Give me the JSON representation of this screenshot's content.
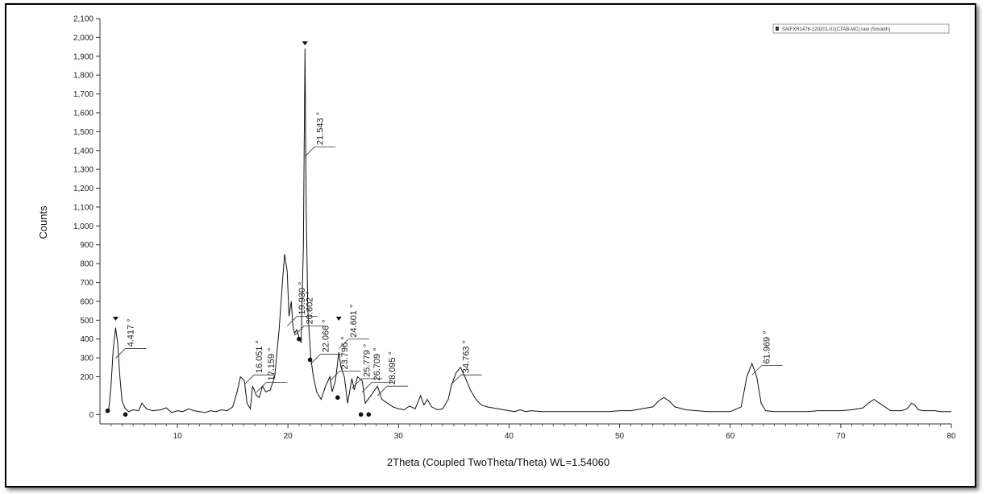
{
  "chart_data": {
    "type": "line",
    "xlabel": "2Theta (Coupled TwoTheta/Theta) WL=1.54060",
    "ylabel": "Counts",
    "xlim": [
      3,
      80
    ],
    "ylim": [
      -50,
      2100
    ],
    "x_ticks": [
      10,
      20,
      30,
      40,
      50,
      60,
      70,
      80
    ],
    "x_tick_labels": [
      "10",
      "20",
      "30",
      "40",
      "50",
      "60",
      "70",
      "80"
    ],
    "y_ticks": [
      0,
      200,
      300,
      400,
      500,
      600,
      700,
      800,
      900,
      1000,
      1100,
      1200,
      1300,
      1400,
      1500,
      1600,
      1700,
      1800,
      1900,
      2000,
      2100
    ],
    "y_tick_labels": [
      "0",
      "200",
      "300",
      "400",
      "500",
      "600",
      "700",
      "800",
      "900",
      "1,000",
      "1,100",
      "1,200",
      "1,300",
      "1,400",
      "1,500",
      "1,600",
      "1,700",
      "1,800",
      "1,900",
      "2,000",
      "2,100"
    ],
    "grid": false,
    "legend": {
      "position": "top-right",
      "entries": [
        "SAIFXR1476-220201-01(CTAB-MC).raw (Smooth)"
      ]
    },
    "color": "#111111",
    "series": [
      {
        "name": "SAIFXR1476-220201-01(CTAB-MC).raw (Smooth)",
        "x": [
          3.5,
          3.8,
          4.0,
          4.2,
          4.417,
          4.6,
          4.8,
          5.0,
          5.3,
          5.6,
          6.0,
          6.5,
          6.8,
          7.2,
          7.8,
          8.5,
          9.0,
          9.5,
          10.0,
          10.5,
          11.0,
          11.5,
          12.0,
          12.5,
          13.0,
          13.5,
          14.0,
          14.5,
          15.0,
          15.4,
          15.7,
          16.051,
          16.3,
          16.6,
          16.8,
          17.159,
          17.4,
          17.7,
          18.0,
          18.4,
          18.8,
          19.2,
          19.5,
          19.7,
          19.93,
          20.1,
          20.3,
          20.45,
          20.602,
          20.8,
          21.0,
          21.2,
          21.4,
          21.543,
          21.65,
          21.8,
          22.066,
          22.3,
          22.6,
          23.0,
          23.4,
          23.796,
          24.0,
          24.3,
          24.601,
          24.8,
          25.1,
          25.4,
          25.779,
          26.0,
          26.3,
          26.709,
          27.0,
          27.5,
          28.095,
          28.5,
          29.0,
          29.5,
          30.0,
          30.5,
          31.0,
          31.5,
          32.0,
          32.3,
          32.6,
          33.0,
          33.5,
          34.0,
          34.5,
          34.763,
          35.2,
          35.6,
          36.0,
          36.5,
          37.0,
          37.5,
          38.0,
          39.0,
          40.0,
          40.5,
          41.0,
          41.5,
          42.0,
          43.0,
          44.0,
          45.0,
          46.0,
          47.0,
          48.0,
          49.0,
          50.0,
          51.0,
          52.0,
          53.0,
          53.5,
          54.0,
          54.5,
          55.0,
          56.0,
          57.0,
          58.0,
          59.0,
          60.0,
          61.0,
          61.5,
          61.969,
          62.4,
          62.8,
          63.2,
          64.0,
          65.0,
          66.0,
          67.0,
          68.0,
          69.0,
          70.0,
          71.0,
          72.0,
          72.5,
          73.0,
          73.5,
          74.0,
          74.5,
          75.0,
          75.5,
          76.0,
          76.4,
          76.7,
          77.0,
          77.5,
          78.0,
          78.5,
          79.0,
          79.5,
          80.0
        ],
        "y": [
          10,
          30,
          150,
          350,
          460,
          380,
          200,
          70,
          30,
          15,
          25,
          20,
          60,
          30,
          20,
          25,
          35,
          10,
          20,
          15,
          30,
          20,
          15,
          10,
          20,
          15,
          25,
          20,
          40,
          120,
          200,
          180,
          60,
          30,
          150,
          100,
          90,
          150,
          120,
          130,
          200,
          450,
          700,
          850,
          760,
          520,
          600,
          470,
          430,
          450,
          410,
          380,
          900,
          1940,
          1100,
          550,
          300,
          200,
          120,
          80,
          150,
          200,
          120,
          180,
          330,
          250,
          200,
          60,
          190,
          130,
          200,
          180,
          60,
          100,
          150,
          80,
          60,
          40,
          30,
          25,
          45,
          30,
          100,
          50,
          80,
          40,
          25,
          30,
          80,
          150,
          220,
          250,
          200,
          130,
          80,
          50,
          40,
          30,
          20,
          15,
          25,
          15,
          20,
          15,
          15,
          15,
          15,
          15,
          15,
          15,
          20,
          20,
          30,
          40,
          70,
          90,
          70,
          40,
          25,
          20,
          15,
          15,
          15,
          40,
          200,
          270,
          200,
          60,
          20,
          15,
          15,
          15,
          15,
          20,
          20,
          20,
          25,
          35,
          60,
          80,
          60,
          40,
          20,
          20,
          20,
          30,
          60,
          50,
          25,
          20,
          20,
          20,
          15,
          15,
          15
        ]
      }
    ],
    "markers": [
      {
        "x": 4.417,
        "y": 480
      },
      {
        "x": 21.543,
        "y": 1940
      },
      {
        "x": 24.601,
        "y": 480
      }
    ],
    "baseline_markers": [
      {
        "x": 3.7,
        "y": 20
      },
      {
        "x": 5.3,
        "y": 0
      },
      {
        "x": 21.0,
        "y": 400
      },
      {
        "x": 22.0,
        "y": 290
      },
      {
        "x": 24.5,
        "y": 90
      },
      {
        "x": 26.6,
        "y": 0
      },
      {
        "x": 27.3,
        "y": 0
      }
    ],
    "peak_labels": [
      {
        "label": "4.417 °",
        "x": 4.417,
        "y": 350
      },
      {
        "label": "16.051 °",
        "x": 16.051,
        "y": 210
      },
      {
        "label": "17.159 °",
        "x": 17.159,
        "y": 170
      },
      {
        "label": "19.930 °",
        "x": 19.93,
        "y": 520
      },
      {
        "label": "20.602 °",
        "x": 20.602,
        "y": 470
      },
      {
        "label": "21.543 °",
        "x": 21.543,
        "y": 1420
      },
      {
        "label": "22.066 °",
        "x": 22.066,
        "y": 320
      },
      {
        "label": "23.796 °",
        "x": 23.796,
        "y": 230
      },
      {
        "label": "24.601 °",
        "x": 24.601,
        "y": 400
      },
      {
        "label": "25.779 °",
        "x": 25.779,
        "y": 190
      },
      {
        "label": "26.709 °",
        "x": 26.709,
        "y": 170
      },
      {
        "label": "28.095 °",
        "x": 28.095,
        "y": 150
      },
      {
        "label": "34.763 °",
        "x": 34.763,
        "y": 210
      },
      {
        "label": "61.969 °",
        "x": 61.969,
        "y": 260
      }
    ]
  }
}
